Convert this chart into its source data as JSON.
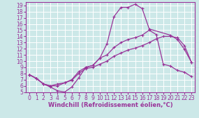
{
  "background_color": "#cce8e8",
  "grid_color": "#ffffff",
  "line_color": "#993399",
  "xlabel": "Windchill (Refroidissement éolien,°C)",
  "xlim": [
    -0.5,
    23.5
  ],
  "ylim": [
    5,
    19.5
  ],
  "xticks": [
    0,
    1,
    2,
    3,
    4,
    5,
    6,
    7,
    8,
    9,
    10,
    11,
    12,
    13,
    14,
    15,
    16,
    17,
    18,
    19,
    20,
    21,
    22,
    23
  ],
  "yticks": [
    5,
    6,
    7,
    8,
    9,
    10,
    11,
    12,
    13,
    14,
    15,
    16,
    17,
    18,
    19
  ],
  "curve1_x": [
    0,
    1,
    2,
    3,
    4,
    5,
    6,
    7,
    8,
    9,
    10,
    11,
    12,
    13,
    14,
    15,
    16,
    17,
    20,
    21,
    22,
    23
  ],
  "curve1_y": [
    7.8,
    7.2,
    6.3,
    5.8,
    5.2,
    5.0,
    5.8,
    7.3,
    9.0,
    9.3,
    10.5,
    12.8,
    17.2,
    18.7,
    18.7,
    19.2,
    18.5,
    15.2,
    14.2,
    13.5,
    11.9,
    9.8
  ],
  "curve2_x": [
    0,
    1,
    2,
    3,
    4,
    5,
    6,
    7,
    8,
    9,
    10,
    11,
    12,
    13,
    14,
    15,
    16,
    17,
    18,
    19,
    20,
    21,
    22,
    23
  ],
  "curve2_y": [
    7.8,
    7.2,
    6.3,
    6.0,
    6.0,
    6.5,
    7.0,
    8.3,
    9.0,
    9.3,
    10.5,
    11.0,
    12.2,
    13.0,
    13.5,
    13.8,
    14.2,
    15.0,
    14.3,
    9.5,
    9.2,
    8.5,
    8.2,
    7.5
  ],
  "curve3_x": [
    0,
    1,
    2,
    3,
    4,
    5,
    6,
    7,
    8,
    9,
    10,
    11,
    12,
    13,
    14,
    15,
    16,
    17,
    18,
    19,
    20,
    21,
    22,
    23
  ],
  "curve3_y": [
    7.8,
    7.2,
    6.3,
    6.0,
    6.3,
    6.5,
    6.9,
    8.0,
    8.8,
    9.0,
    9.5,
    10.0,
    10.8,
    11.3,
    11.8,
    12.1,
    12.5,
    13.0,
    13.6,
    14.0,
    14.0,
    13.8,
    12.5,
    9.8
  ],
  "marker_size": 3.5,
  "linewidth": 0.9,
  "tick_fontsize": 5.5,
  "label_fontsize": 6.0
}
